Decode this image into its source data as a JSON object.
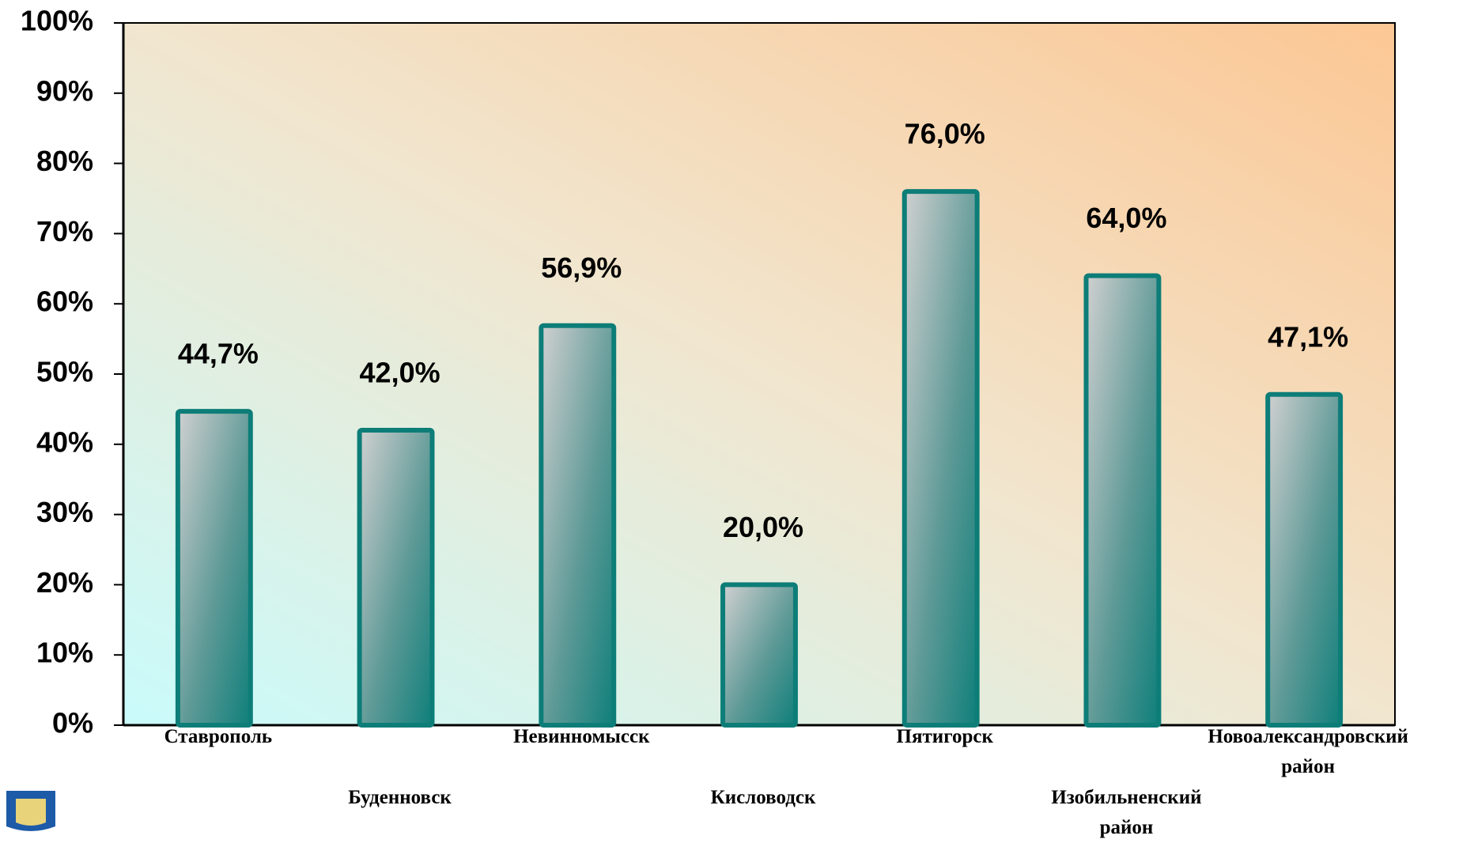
{
  "chart_data": {
    "type": "bar",
    "categories": [
      "Ставрополь",
      "Буденновск",
      "Невинномысск",
      "Кисловодск",
      "Пятигорск",
      "Изобильненский\nрайон",
      "Новоалександровский\nрайон"
    ],
    "values": [
      44.7,
      42.0,
      56.9,
      20.0,
      76.0,
      64.0,
      47.1
    ],
    "value_labels": [
      "44,7%",
      "42,0%",
      "56,9%",
      "20,0%",
      "76,0%",
      "64,0%",
      "47,1%"
    ],
    "color": "#0d7d78",
    "ylim": [
      0,
      100
    ],
    "yticks": [
      {
        "value": 0,
        "label": "0%"
      },
      {
        "value": 10,
        "label": "10%"
      },
      {
        "value": 20,
        "label": "20%"
      },
      {
        "value": 30,
        "label": "30%"
      },
      {
        "value": 40,
        "label": "40%"
      },
      {
        "value": 50,
        "label": "50%"
      },
      {
        "value": 60,
        "label": "60%"
      },
      {
        "value": 70,
        "label": "70%"
      },
      {
        "value": 80,
        "label": "80%"
      },
      {
        "value": 90,
        "label": "90%"
      },
      {
        "value": 100,
        "label": "100%"
      }
    ],
    "grid": false
  }
}
